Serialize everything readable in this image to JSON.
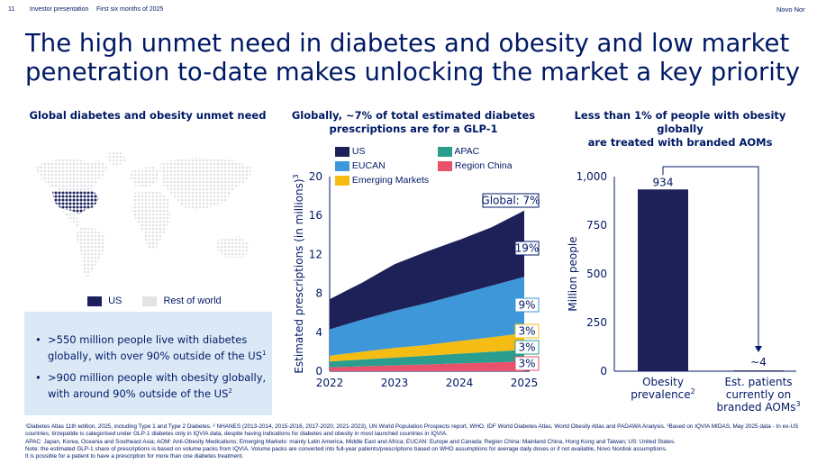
{
  "header": {
    "page_number": "11",
    "section": "Investor presentation",
    "period": "First six months of 2025",
    "brand": "Novo Nor"
  },
  "title_line1": "The high unmet need in diabetes and obesity and low market",
  "title_line2": "penetration to-date makes unlocking the market a key priority",
  "left": {
    "heading": "Global diabetes and obesity unmet need",
    "legend": {
      "us": "US",
      "rest": "Rest of world"
    },
    "bullets": [
      {
        "text": ">550 million people live with diabetes globally, with over 90% outside of the US",
        "sup": "1"
      },
      {
        "text": ">900 million people with obesity globally, with around 90% outside of the US",
        "sup": "2"
      }
    ],
    "colors": {
      "us": "#1b1f5e",
      "rest": "#e3e3e6"
    }
  },
  "middle": {
    "heading_line1": "Globally, ~7% of total estimated diabetes",
    "heading_line2": "prescriptions are for a GLP-1",
    "legend": [
      "US",
      "APAC",
      "EUCAN",
      "Region China",
      "Emerging Markets"
    ],
    "ylabel": "Estimated prescriptions (in millions)",
    "ylabel_sup": "3",
    "callouts": {
      "global": "Global: 7%",
      "us": "19%",
      "eucan": "9%",
      "em": "3%",
      "apac": "3%",
      "china": "3%"
    }
  },
  "right": {
    "heading_line1": "Less than 1% of people with obesity globally",
    "heading_line2": "are treated with branded AOMs",
    "ylabel": "Million people",
    "cat1_line1": "Obesity",
    "cat1_line2": "prevalence",
    "cat1_sup": "2",
    "cat2_line1": "Est. patients",
    "cat2_line2": "currently on",
    "cat2_line3": "branded AOMs",
    "cat2_sup": "3"
  },
  "chart_data": [
    {
      "type": "area",
      "stacked": true,
      "x": [
        2022,
        2022.5,
        2023,
        2023.5,
        2024,
        2024.5,
        2025
      ],
      "series": [
        {
          "name": "Region China",
          "color": "#e8526b",
          "values": [
            0.4,
            0.5,
            0.6,
            0.7,
            0.8,
            0.9,
            1.0
          ]
        },
        {
          "name": "APAC",
          "color": "#2a9d8f",
          "values": [
            0.6,
            0.7,
            0.8,
            0.9,
            1.0,
            1.1,
            1.2
          ]
        },
        {
          "name": "Emerging Markets",
          "color": "#f5bd13",
          "values": [
            0.6,
            0.8,
            1.0,
            1.1,
            1.3,
            1.5,
            1.7
          ]
        },
        {
          "name": "EUCAN",
          "color": "#3d97d8",
          "values": [
            2.7,
            3.3,
            3.8,
            4.3,
            4.8,
            5.3,
            5.8
          ]
        },
        {
          "name": "US",
          "color": "#1e2158",
          "values": [
            3.1,
            3.8,
            4.8,
            5.3,
            5.6,
            6.0,
            6.8
          ]
        }
      ],
      "xlabel": "",
      "ylabel": "Estimated prescriptions (in millions)",
      "yticks": [
        0,
        4,
        8,
        12,
        16,
        20
      ],
      "xticks": [
        "2022",
        "2023",
        "2024",
        "2025"
      ],
      "ylim": [
        0,
        20
      ],
      "annotations": [
        "Global: 7%",
        "19%",
        "9%",
        "3%",
        "3%",
        "3%"
      ]
    },
    {
      "type": "bar",
      "categories": [
        "Obesity prevalence",
        "Est. patients currently on branded AOMs"
      ],
      "values": [
        934,
        4
      ],
      "data_labels": [
        "934",
        "~4"
      ],
      "ylabel": "Million people",
      "yticks": [
        "0",
        "250",
        "500",
        "750",
        "1,000"
      ],
      "ylim": [
        0,
        1000
      ],
      "color": "#1e2158"
    }
  ],
  "footnotes": [
    "¹Diabetes Atlas 11th edition, 2025, including Type 1 and Type 2 Diabetes. ² NHANES (2013-2014, 2015-2016, 2017-2020, 2021-2023), UN World Population Prospects report, WHO, IDF World Diabetes Atlas, World Obesity Atlas and PADAWA Analysis. ³Based on IQVIA MIDAS, May 2025 data - In ex-US countries, tirzepatide is categorised under GLP-1 diabetes only in IQVIA data, despite having indications for diabetes and obesity in most launched countries in IQVIA.",
    "APAC: Japan, Korea, Oceania and Southeast Asia; AOM: Anti-Obesity Medications; Emerging Markets: mainly Latin America, Middle East and Africa; EUCAN: Europe and Canada; Region China: Mainland China, Hong Kong and Taiwan; US: United States.",
    "Note: the estimated GLP-1 share of prescriptions is based on volume packs from IQVIA. Volume packs are converted into full-year patients/prescriptions based on WHO assumptions for average daily doses or if not available, Novo Nordisk assumptions.",
    "It is possible for a patient to have a prescription for more than one diabetes treatment."
  ]
}
